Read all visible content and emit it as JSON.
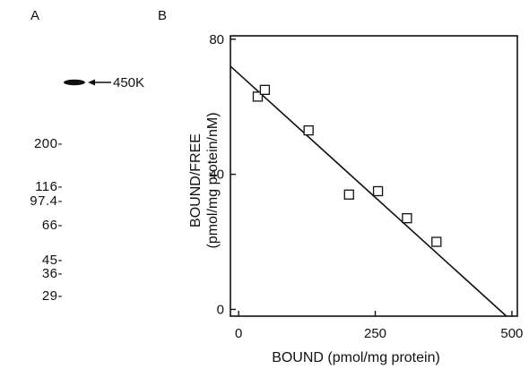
{
  "panels": {
    "a_label": "A",
    "b_label": "B"
  },
  "gel": {
    "band_label": "450K",
    "markers": [
      "200-",
      "116-",
      "97.4-",
      "66-",
      "45-",
      "36-",
      "29-"
    ]
  },
  "chart_data": {
    "type": "scatter",
    "title": "",
    "xlabel": "BOUND (pmol/mg protein)",
    "ylabel_line1": "BOUND/FREE",
    "ylabel_line2": "(pmol/mg protein/nM)",
    "xlim": [
      -15,
      510
    ],
    "ylim": [
      -2,
      81
    ],
    "x_ticks": [
      0,
      250,
      500
    ],
    "y_ticks": [
      0,
      40,
      80
    ],
    "grid": false,
    "legend": "none",
    "series": [
      {
        "marker": "open-square",
        "points": [
          {
            "x": 35,
            "y": 63
          },
          {
            "x": 48,
            "y": 65
          },
          {
            "x": 128,
            "y": 53
          },
          {
            "x": 202,
            "y": 34
          },
          {
            "x": 255,
            "y": 35
          },
          {
            "x": 308,
            "y": 27
          },
          {
            "x": 362,
            "y": 20
          }
        ]
      }
    ],
    "fit_line": {
      "x1": -15,
      "y1": 72,
      "x2": 490,
      "y2": -2
    }
  }
}
